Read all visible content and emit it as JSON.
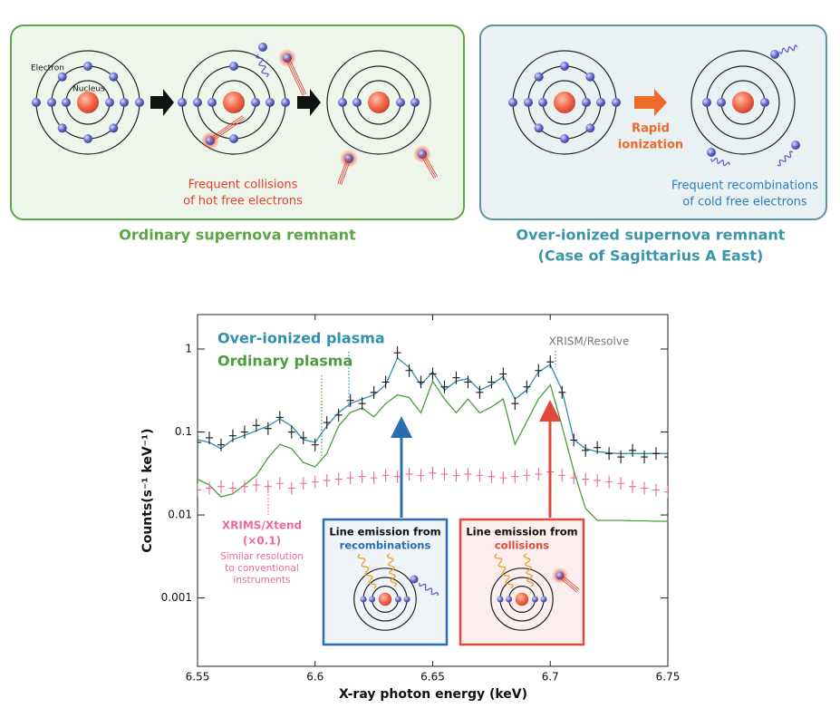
{
  "diagram": {
    "left": {
      "electron_label": "Electron",
      "nucleus_label": "Nucleus",
      "note": [
        "Frequent collisions",
        "of hot free electrons"
      ],
      "caption": "Ordinary supernova remnant"
    },
    "right": {
      "arrow_label": [
        "Rapid",
        "ionization"
      ],
      "note": [
        "Frequent recombinations",
        "of cold free electrons"
      ],
      "caption": [
        "Over-ionized supernova remnant",
        "(Case of Sagittarius A East)"
      ]
    }
  },
  "chart_data": {
    "type": "line",
    "xlabel": "X-ray photon energy (keV)",
    "ylabel": "Counts(s⁻¹ keV⁻¹)",
    "log_y": true,
    "xlim": [
      6.55,
      6.75
    ],
    "ylim": [
      0.00015,
      2.6
    ],
    "xticks": [
      6.55,
      6.6,
      6.65,
      6.7,
      6.75
    ],
    "yticks": [
      0.001,
      0.01,
      0.1,
      1
    ],
    "x": [
      6.55,
      6.555,
      6.56,
      6.565,
      6.57,
      6.575,
      6.58,
      6.585,
      6.59,
      6.595,
      6.6,
      6.605,
      6.61,
      6.615,
      6.62,
      6.625,
      6.63,
      6.635,
      6.64,
      6.645,
      6.65,
      6.655,
      6.66,
      6.665,
      6.67,
      6.675,
      6.68,
      6.685,
      6.69,
      6.695,
      6.7,
      6.705,
      6.71,
      6.715,
      6.72,
      6.725,
      6.73,
      6.735,
      6.74,
      6.745,
      6.75
    ],
    "series": [
      {
        "name": "Over-ionized plasma",
        "color": "#2e8fae",
        "style": "line",
        "values": [
          0.081,
          0.075,
          0.063,
          0.081,
          0.091,
          0.104,
          0.118,
          0.144,
          0.118,
          0.081,
          0.075,
          0.118,
          0.172,
          0.22,
          0.25,
          0.28,
          0.37,
          0.78,
          0.6,
          0.37,
          0.53,
          0.32,
          0.41,
          0.44,
          0.32,
          0.37,
          0.47,
          0.25,
          0.32,
          0.53,
          0.65,
          0.32,
          0.081,
          0.063,
          0.058,
          0.056,
          0.055,
          0.055,
          0.055,
          0.055,
          0.055
        ]
      },
      {
        "name": "Ordinary plasma",
        "color": "#4a9e3c",
        "style": "line",
        "values": [
          0.027,
          0.023,
          0.0165,
          0.018,
          0.023,
          0.03,
          0.049,
          0.071,
          0.063,
          0.043,
          0.038,
          0.055,
          0.118,
          0.172,
          0.195,
          0.152,
          0.22,
          0.28,
          0.26,
          0.17,
          0.41,
          0.25,
          0.17,
          0.25,
          0.17,
          0.2,
          0.25,
          0.071,
          0.133,
          0.25,
          0.37,
          0.118,
          0.034,
          0.012,
          0.0086,
          0.0086,
          0.0086,
          0.0085,
          0.0085,
          0.0084,
          0.0084
        ]
      },
      {
        "name": "XRISM/Resolve",
        "color": "#1a1a1a",
        "style": "cross",
        "values": [
          0.075,
          0.085,
          0.07,
          0.09,
          0.1,
          0.12,
          0.11,
          0.15,
          0.1,
          0.085,
          0.07,
          0.13,
          0.16,
          0.24,
          0.22,
          0.3,
          0.4,
          0.9,
          0.55,
          0.4,
          0.5,
          0.35,
          0.45,
          0.4,
          0.3,
          0.4,
          0.5,
          0.22,
          0.35,
          0.55,
          0.7,
          0.3,
          0.08,
          0.06,
          0.065,
          0.055,
          0.05,
          0.06,
          0.05,
          0.055,
          0.05
        ]
      },
      {
        "name": "XRIMS/Xtend",
        "color": "#ee6a96",
        "style": "cross",
        "values": [
          0.02,
          0.021,
          0.022,
          0.021,
          0.022,
          0.023,
          0.022,
          0.024,
          0.021,
          0.024,
          0.025,
          0.026,
          0.027,
          0.028,
          0.029,
          0.028,
          0.03,
          0.029,
          0.031,
          0.03,
          0.032,
          0.031,
          0.03,
          0.031,
          0.03,
          0.029,
          0.028,
          0.029,
          0.03,
          0.031,
          0.033,
          0.03,
          0.028,
          0.027,
          0.026,
          0.025,
          0.024,
          0.022,
          0.021,
          0.02,
          0.019
        ]
      }
    ],
    "xtend_note": [
      "(×0.1)",
      "Similar resolution",
      "to conventional",
      "instruments"
    ],
    "insets": [
      {
        "lines": [
          "Line emission from",
          "recombinations"
        ],
        "color": "#2a6db0"
      },
      {
        "lines": [
          "Line emission from",
          "collisions"
        ],
        "color": "#e04a3a"
      }
    ]
  }
}
